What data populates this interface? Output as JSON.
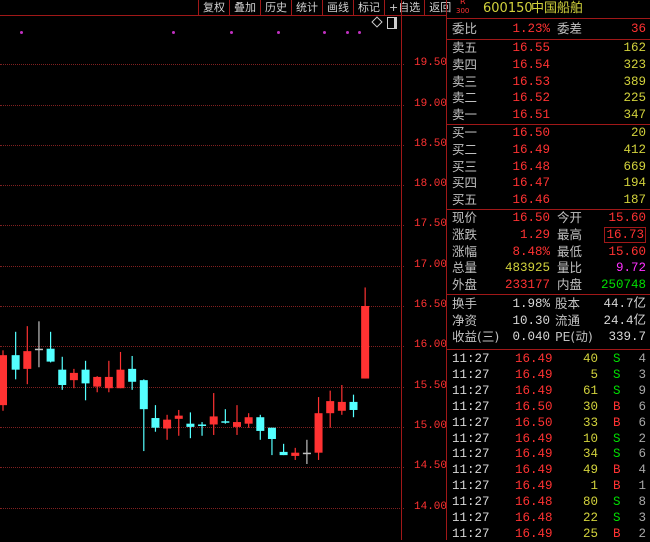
{
  "toolbar": [
    "复权",
    "叠加",
    "历史",
    "统计",
    "画线",
    "标记",
    "+自选",
    "返回"
  ],
  "chart_icons": [
    "diamond-icon",
    "panel-toggle-icon"
  ],
  "colors": {
    "up": "#ff3232",
    "down": "#54ffff",
    "doji": "#c0c0c0",
    "grid": "#802020",
    "background": "#000000"
  },
  "chart_data": {
    "type": "candlestick",
    "ylim": [
      13.8,
      19.8
    ],
    "y_ticks": [
      "19.50",
      "19.00",
      "18.50",
      "18.00",
      "17.50",
      "17.00",
      "16.50",
      "16.00",
      "15.50",
      "15.00",
      "14.50",
      "14.00"
    ],
    "grid": true,
    "candles": [
      [
        15.27,
        15.95,
        15.2,
        15.89
      ],
      [
        15.89,
        16.18,
        15.59,
        15.71
      ],
      [
        15.72,
        16.25,
        15.53,
        15.94
      ],
      [
        15.97,
        16.31,
        15.74,
        15.97
      ],
      [
        15.97,
        16.18,
        15.8,
        15.81
      ],
      [
        15.71,
        15.87,
        15.46,
        15.52
      ],
      [
        15.58,
        15.72,
        15.48,
        15.67
      ],
      [
        15.71,
        15.82,
        15.33,
        15.54
      ],
      [
        15.5,
        15.63,
        15.43,
        15.62
      ],
      [
        15.48,
        15.82,
        15.43,
        15.62
      ],
      [
        15.48,
        15.93,
        15.48,
        15.71
      ],
      [
        15.72,
        15.88,
        15.46,
        15.56
      ],
      [
        15.58,
        15.59,
        14.7,
        15.22
      ],
      [
        15.11,
        15.27,
        14.94,
        14.99
      ],
      [
        14.98,
        15.15,
        14.84,
        15.09
      ],
      [
        15.1,
        15.21,
        14.89,
        15.14
      ],
      [
        15.04,
        15.18,
        14.86,
        15.0
      ],
      [
        15.03,
        15.06,
        14.89,
        15.03
      ],
      [
        15.03,
        15.42,
        14.9,
        15.13
      ],
      [
        15.07,
        15.22,
        15.04,
        15.07
      ],
      [
        15.0,
        15.27,
        14.9,
        15.06
      ],
      [
        15.04,
        15.17,
        14.99,
        15.12
      ],
      [
        15.12,
        15.15,
        14.84,
        14.95
      ],
      [
        14.99,
        14.99,
        14.65,
        14.85
      ],
      [
        14.69,
        14.79,
        14.65,
        14.65
      ],
      [
        14.64,
        14.74,
        14.59,
        14.68
      ],
      [
        14.68,
        14.84,
        14.54,
        14.68
      ],
      [
        14.68,
        15.37,
        14.59,
        15.17
      ],
      [
        15.17,
        15.45,
        14.99,
        15.32
      ],
      [
        15.2,
        15.52,
        15.15,
        15.31
      ],
      [
        15.31,
        15.4,
        15.12,
        15.21
      ],
      [
        15.6,
        16.73,
        15.6,
        16.5
      ]
    ]
  },
  "quote": {
    "badge_top": "R",
    "badge_bottom": "300",
    "code": "600150",
    "name": "中国船舶",
    "weibi_label": "委比",
    "weibi": "1.23%",
    "weicha_label": "委差",
    "weicha": "36",
    "sell": [
      {
        "label": "卖五",
        "price": "16.55",
        "vol": "162"
      },
      {
        "label": "卖四",
        "price": "16.54",
        "vol": "323"
      },
      {
        "label": "卖三",
        "price": "16.53",
        "vol": "389"
      },
      {
        "label": "卖二",
        "price": "16.52",
        "vol": "225"
      },
      {
        "label": "卖一",
        "price": "16.51",
        "vol": "347"
      }
    ],
    "buy": [
      {
        "label": "买一",
        "price": "16.50",
        "vol": "20"
      },
      {
        "label": "买二",
        "price": "16.49",
        "vol": "412"
      },
      {
        "label": "买三",
        "price": "16.48",
        "vol": "669"
      },
      {
        "label": "买四",
        "price": "16.47",
        "vol": "194"
      },
      {
        "label": "买五",
        "price": "16.46",
        "vol": "187"
      }
    ],
    "stats": [
      {
        "l1": "现价",
        "v1": "16.50",
        "c1": "red",
        "l2": "今开",
        "v2": "15.60",
        "c2": "red"
      },
      {
        "l1": "涨跌",
        "v1": "1.29",
        "c1": "red",
        "l2": "最高",
        "v2": "16.73",
        "c2": "red"
      },
      {
        "l1": "涨幅",
        "v1": "8.48%",
        "c1": "red",
        "l2": "最低",
        "v2": "15.60",
        "c2": "red"
      },
      {
        "l1": "总量",
        "v1": "483925",
        "c1": "yel",
        "l2": "量比",
        "v2": "9.72",
        "c2": "mag"
      },
      {
        "l1": "外盘",
        "v1": "233177",
        "c1": "red",
        "l2": "内盘",
        "v2": "250748",
        "c2": "grn"
      }
    ],
    "fund": [
      {
        "l1": "换手",
        "v1": "1.98%",
        "l2": "股本",
        "v2": "44.7亿"
      },
      {
        "l1": "净资",
        "v1": "10.30",
        "l2": "流通",
        "v2": "24.4亿"
      },
      {
        "l1": "收益(三)",
        "v1": "0.040",
        "l2": "PE(动)",
        "v2": "339.7"
      }
    ]
  },
  "ticks": [
    {
      "time": "11:27",
      "price": "16.49",
      "vol": "40",
      "side": "S",
      "n": "4"
    },
    {
      "time": "11:27",
      "price": "16.49",
      "vol": "5",
      "side": "S",
      "n": "3"
    },
    {
      "time": "11:27",
      "price": "16.49",
      "vol": "61",
      "side": "S",
      "n": "9"
    },
    {
      "time": "11:27",
      "price": "16.50",
      "vol": "30",
      "side": "B",
      "n": "6"
    },
    {
      "time": "11:27",
      "price": "16.50",
      "vol": "33",
      "side": "B",
      "n": "6"
    },
    {
      "time": "11:27",
      "price": "16.49",
      "vol": "10",
      "side": "S",
      "n": "2"
    },
    {
      "time": "11:27",
      "price": "16.49",
      "vol": "34",
      "side": "S",
      "n": "6"
    },
    {
      "time": "11:27",
      "price": "16.49",
      "vol": "49",
      "side": "B",
      "n": "4"
    },
    {
      "time": "11:27",
      "price": "16.49",
      "vol": "1",
      "side": "B",
      "n": "1"
    },
    {
      "time": "11:27",
      "price": "16.48",
      "vol": "80",
      "side": "S",
      "n": "8"
    },
    {
      "time": "11:27",
      "price": "16.48",
      "vol": "22",
      "side": "S",
      "n": "3"
    },
    {
      "time": "11:27",
      "price": "16.49",
      "vol": "25",
      "side": "B",
      "n": "2"
    }
  ]
}
